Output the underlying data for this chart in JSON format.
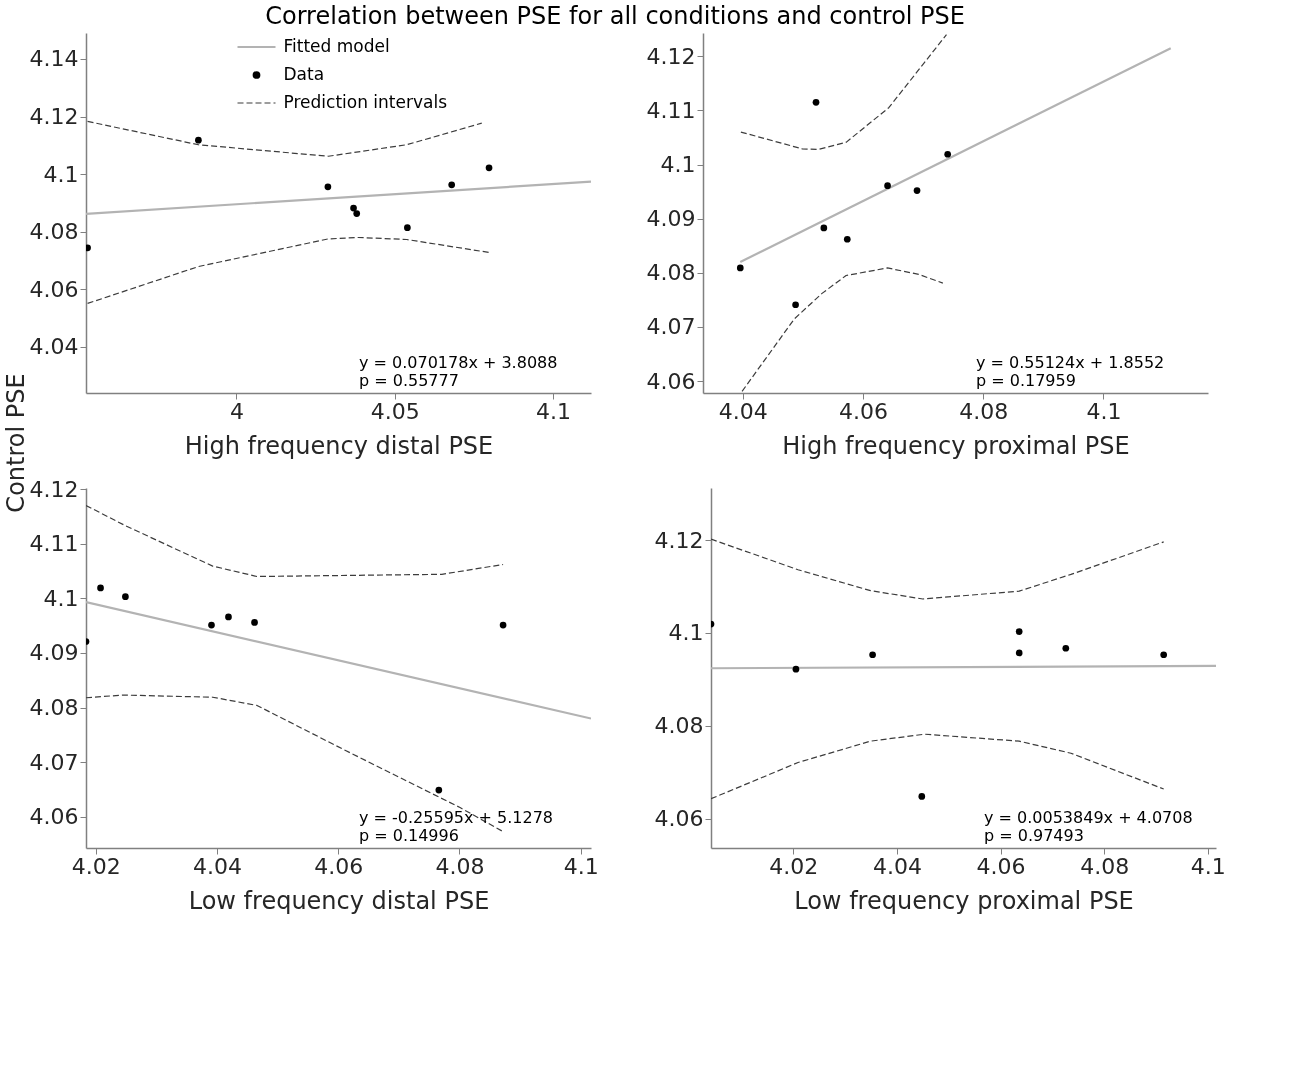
{
  "chart_data": [
    {
      "type": "scatter",
      "title": "Correlation between PSE for all conditions and control PSE",
      "ylabel": "Control PSE",
      "xlabel": "High frequency distal PSE",
      "xlim": [
        3.9525,
        4.112
      ],
      "ylim": [
        4.024,
        4.149
      ],
      "xticks": [
        4,
        4.05,
        4.1
      ],
      "yticks": [
        4.04,
        4.06,
        4.08,
        4.1,
        4.12,
        4.14
      ],
      "grid": false,
      "legend": "top",
      "series": [
        {
          "name": "Fitted model",
          "type": "line",
          "line_style": "solid",
          "color": "#b3b3b3",
          "x": [
            3.9525,
            4.112
          ],
          "values": [
            4.0862,
            4.0974
          ]
        },
        {
          "name": "Data",
          "marker": "circle",
          "color": "#000000",
          "x": [
            3.953,
            3.988,
            4.0289,
            4.037,
            4.038,
            4.054,
            4.068,
            4.0798
          ],
          "values": [
            4.0744,
            4.1118,
            4.0956,
            4.0882,
            4.0863,
            4.0814,
            4.0963,
            4.1022
          ]
        },
        {
          "name": "Prediction intervals",
          "type": "line",
          "line_style": "dashed",
          "color": "#3c3c3c",
          "x": [
            3.953,
            3.988,
            4.029,
            4.0538,
            4.0775
          ],
          "values": [
            4.1183,
            4.1102,
            4.1062,
            4.1102,
            4.1177
          ]
        },
        {
          "type": "line",
          "line_style": "dashed",
          "color": "#3c3c3c",
          "x": [
            3.953,
            3.988,
            4.029,
            4.0385,
            4.0538,
            4.0798
          ],
          "values": [
            4.0551,
            4.0679,
            4.0775,
            4.078,
            4.0773,
            4.0728
          ]
        }
      ],
      "annotations": [
        "y = 0.070178x + 3.8088",
        "p = 0.55777"
      ]
    },
    {
      "type": "scatter",
      "xlabel": "High frequency proximal PSE",
      "xlim": [
        4.0334,
        4.1174
      ],
      "ylim": [
        4.0578,
        4.1243
      ],
      "xticks": [
        4.04,
        4.06,
        4.08,
        4.1
      ],
      "yticks": [
        4.06,
        4.07,
        4.08,
        4.09,
        4.1,
        4.11,
        4.12
      ],
      "grid": false,
      "series": [
        {
          "type": "line",
          "line_style": "solid",
          "color": "#b3b3b3",
          "x": [
            4.0396,
            4.1112
          ],
          "values": [
            4.082,
            4.1215
          ]
        },
        {
          "marker": "circle",
          "color": "#000000",
          "x": [
            4.0396,
            4.0488,
            4.0522,
            4.0535,
            4.0574,
            4.0641,
            4.069,
            4.0741
          ],
          "values": [
            4.0809,
            4.0741,
            4.1115,
            4.0883,
            4.0862,
            4.0961,
            4.0952,
            4.1019
          ]
        },
        {
          "type": "line",
          "line_style": "dashed",
          "color": "#3c3c3c",
          "x": [
            4.0397,
            4.0499,
            4.0526,
            4.0572,
            4.0643,
            4.0739
          ],
          "values": [
            4.106,
            4.1029,
            4.1028,
            4.1041,
            4.1105,
            4.124
          ]
        },
        {
          "type": "line",
          "line_style": "dashed",
          "color": "#3c3c3c",
          "x": [
            4.0399,
            4.0486,
            4.0532,
            4.0572,
            4.0641,
            4.0693,
            4.0733
          ],
          "values": [
            4.0581,
            4.0715,
            4.0762,
            4.0795,
            4.0809,
            4.0797,
            4.0781
          ]
        }
      ],
      "annotations": [
        "y = 0.55124x + 1.8552",
        "p = 0.17959"
      ]
    },
    {
      "type": "scatter",
      "xlabel": "Low frequency distal PSE",
      "xlim": [
        4.0184,
        4.1017
      ],
      "ylim": [
        4.0543,
        4.1202
      ],
      "xticks": [
        4.02,
        4.04,
        4.06,
        4.08,
        4.1
      ],
      "yticks": [
        4.06,
        4.07,
        4.08,
        4.09,
        4.1,
        4.11,
        4.12
      ],
      "grid": false,
      "series": [
        {
          "type": "line",
          "line_style": "solid",
          "color": "#b3b3b3",
          "x": [
            4.0184,
            4.1017
          ],
          "values": [
            4.0993,
            4.078
          ]
        },
        {
          "marker": "circle",
          "color": "#000000",
          "x": [
            4.0184,
            4.0208,
            4.0249,
            4.0391,
            4.0419,
            4.0462,
            4.0766,
            4.0872
          ],
          "values": [
            4.0921,
            4.1019,
            4.1003,
            4.0951,
            4.0966,
            4.0956,
            4.0649,
            4.0951
          ]
        },
        {
          "type": "line",
          "line_style": "dashed",
          "color": "#3c3c3c",
          "x": [
            4.0184,
            4.0249,
            4.0393,
            4.0466,
            4.0771,
            4.0872
          ],
          "values": [
            4.117,
            4.1133,
            4.1059,
            4.104,
            4.1044,
            4.1062
          ]
        },
        {
          "type": "line",
          "line_style": "dashed",
          "color": "#3c3c3c",
          "x": [
            4.0184,
            4.0245,
            4.0393,
            4.0466,
            4.0613,
            4.0801,
            4.0872
          ],
          "values": [
            4.0818,
            4.0823,
            4.0819,
            4.0804,
            4.0721,
            4.0617,
            4.0573
          ]
        }
      ],
      "annotations": [
        "y = -0.25595x + 5.1278",
        "p = 0.14996"
      ]
    },
    {
      "type": "scatter",
      "xlabel": "Low frequency proximal PSE",
      "xlim": [
        4.0041,
        4.1016
      ],
      "ylim": [
        4.0537,
        4.1312
      ],
      "xticks": [
        4.02,
        4.04,
        4.06,
        4.08,
        4.1
      ],
      "yticks": [
        4.06,
        4.08,
        4.1,
        4.12
      ],
      "grid": false,
      "series": [
        {
          "type": "line",
          "line_style": "solid",
          "color": "#b3b3b3",
          "x": [
            4.0041,
            4.1016
          ],
          "values": [
            4.0924,
            4.0929
          ]
        },
        {
          "marker": "circle",
          "color": "#000000",
          "x": [
            4.0041,
            4.0205,
            4.0353,
            4.0448,
            4.0636,
            4.0636,
            4.0726,
            4.0915
          ],
          "values": [
            4.1019,
            4.0922,
            4.0953,
            4.0648,
            4.1003,
            4.0957,
            4.0967,
            4.0953
          ]
        },
        {
          "type": "line",
          "line_style": "dashed",
          "color": "#3c3c3c",
          "x": [
            4.0041,
            4.0209,
            4.0349,
            4.045,
            4.0636,
            4.0736,
            4.0915
          ],
          "values": [
            4.1202,
            4.1136,
            4.1091,
            4.1073,
            4.109,
            4.1126,
            4.1196
          ]
        },
        {
          "type": "line",
          "line_style": "dashed",
          "color": "#3c3c3c",
          "x": [
            4.0041,
            4.0209,
            4.0349,
            4.0453,
            4.0636,
            4.0736,
            4.0915
          ],
          "values": [
            4.0643,
            4.0721,
            4.0767,
            4.0782,
            4.0767,
            4.0741,
            4.0664
          ]
        }
      ],
      "annotations": [
        "y = 0.0053849x + 4.0708",
        "p = 0.97493"
      ]
    }
  ]
}
